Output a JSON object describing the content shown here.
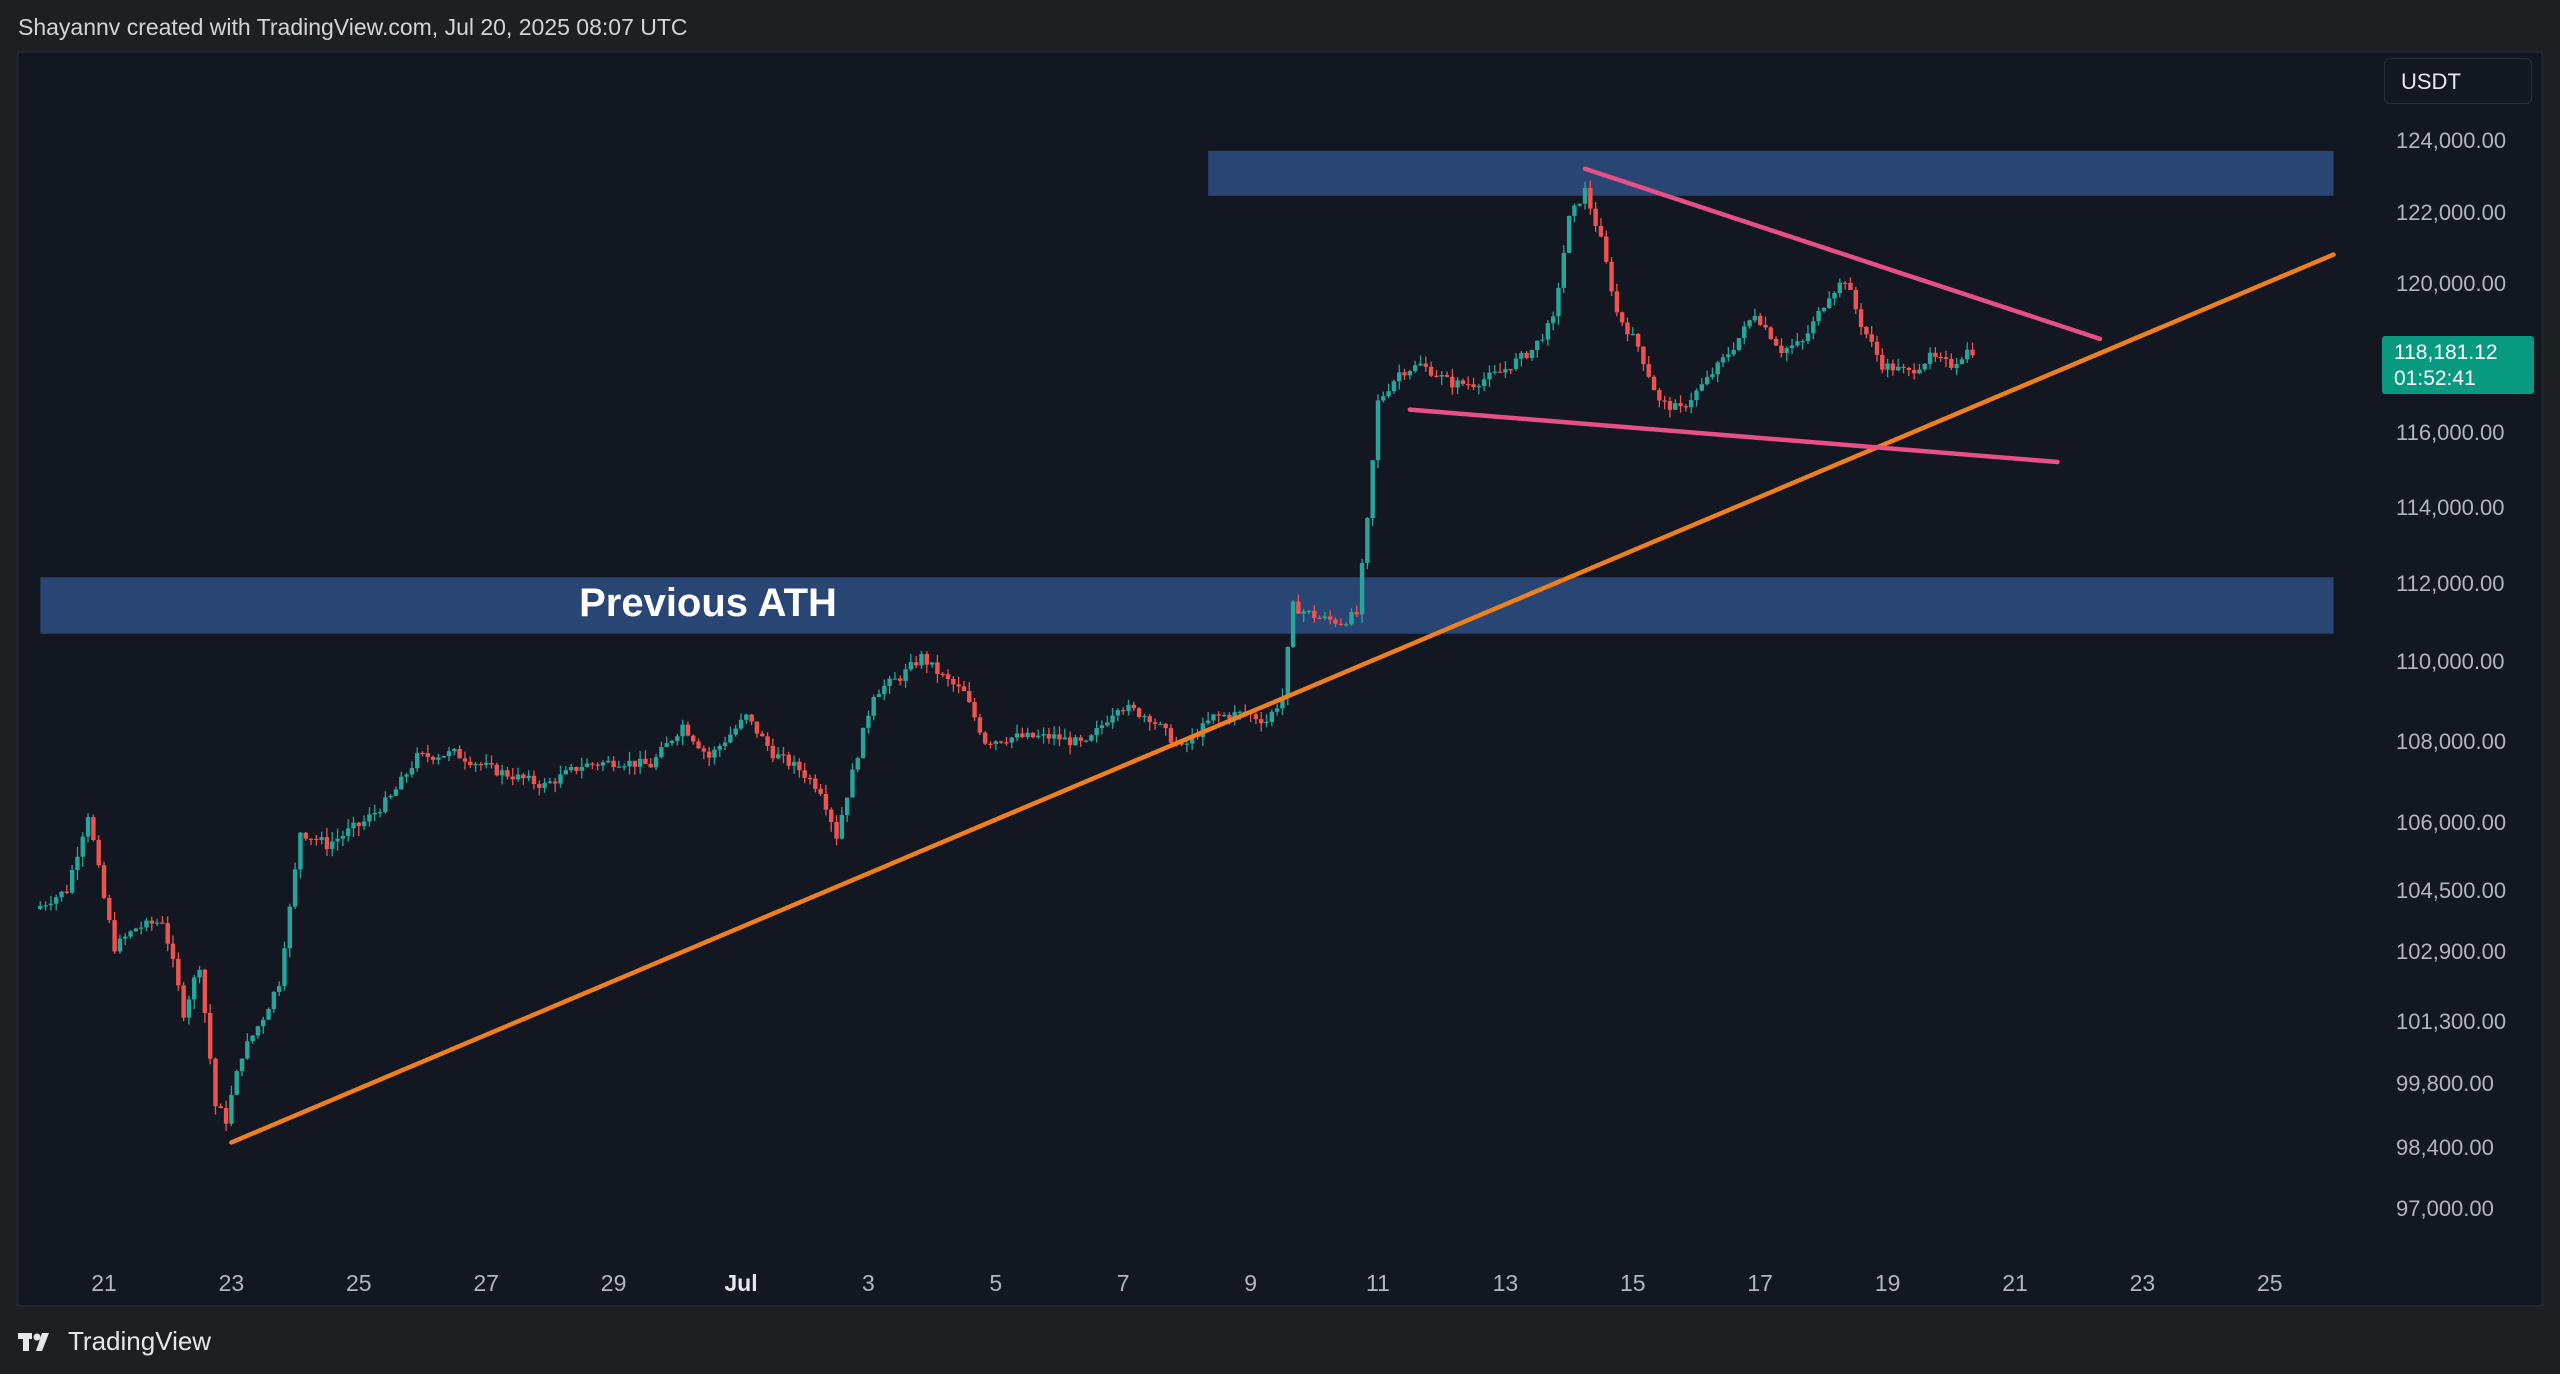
{
  "header": {
    "attribution": "Shayannv created with TradingView.com, Jul 20, 2025 08:07 UTC"
  },
  "footer": {
    "brand": "TradingView"
  },
  "price_scale": {
    "currency": "USDT"
  },
  "last_price": {
    "price": "118,181.12",
    "countdown": "01:52:41"
  },
  "colors": {
    "background": "#131722",
    "frame": "#1e1f22",
    "up": "#26a69a",
    "down": "#ef5350",
    "zone": "#2b4a7c",
    "trendline": "#f0801e",
    "wedge": "#e84f86",
    "last_price_tag": "#089981"
  },
  "chart_data": {
    "type": "candlestick",
    "symbol_quote": "USDT",
    "annotations": {
      "zone_label": "Previous ATH"
    },
    "y_ticks": [
      "124,000.00",
      "122,000.00",
      "120,000.00",
      "116,000.00",
      "114,000.00",
      "112,000.00",
      "110,000.00",
      "108,000.00",
      "106,000.00",
      "104,500.00",
      "102,900.00",
      "101,300.00",
      "99,800.00",
      "98,400.00",
      "97,000.00"
    ],
    "y_tick_values": [
      124000,
      122000,
      120000,
      116000,
      114000,
      112000,
      110000,
      108000,
      106000,
      104500,
      102900,
      101300,
      99800,
      98400,
      97000
    ],
    "x_ticks": [
      "21",
      "23",
      "25",
      "27",
      "29",
      "Jul",
      "3",
      "5",
      "7",
      "9",
      "11",
      "13",
      "15",
      "17",
      "19",
      "21",
      "23",
      "25"
    ],
    "x_tick_dates": [
      "2025-06-21",
      "2025-06-23",
      "2025-06-25",
      "2025-06-27",
      "2025-06-29",
      "2025-07-01",
      "2025-07-03",
      "2025-07-05",
      "2025-07-07",
      "2025-07-09",
      "2025-07-11",
      "2025-07-13",
      "2025-07-15",
      "2025-07-17",
      "2025-07-19",
      "2025-07-21",
      "2025-07-23",
      "2025-07-25"
    ],
    "price_path": [
      [
        "2025-06-20 00:00",
        104000
      ],
      [
        "2025-06-20 12:00",
        104500
      ],
      [
        "2025-06-20 20:00",
        106200
      ],
      [
        "2025-06-21 06:00",
        103000
      ],
      [
        "2025-06-21 14:00",
        103500
      ],
      [
        "2025-06-22 00:00",
        103700
      ],
      [
        "2025-06-22 08:00",
        101500
      ],
      [
        "2025-06-22 14:00",
        102600
      ],
      [
        "2025-06-22 20:00",
        99300
      ],
      [
        "2025-06-23 00:00",
        99000
      ],
      [
        "2025-06-23 06:00",
        100500
      ],
      [
        "2025-06-23 14:00",
        101400
      ],
      [
        "2025-06-23 20:00",
        102200
      ],
      [
        "2025-06-24 04:00",
        105800
      ],
      [
        "2025-06-24 14:00",
        105500
      ],
      [
        "2025-06-25 04:00",
        106000
      ],
      [
        "2025-06-25 14:00",
        106600
      ],
      [
        "2025-06-26 00:00",
        107600
      ],
      [
        "2025-06-26 14:00",
        107700
      ],
      [
        "2025-06-27 04:00",
        107300
      ],
      [
        "2025-06-27 14:00",
        107100
      ],
      [
        "2025-06-28 00:00",
        106900
      ],
      [
        "2025-06-28 14:00",
        107400
      ],
      [
        "2025-06-29 04:00",
        107500
      ],
      [
        "2025-06-29 16:00",
        107400
      ],
      [
        "2025-06-30 04:00",
        108400
      ],
      [
        "2025-06-30 14:00",
        107600
      ],
      [
        "2025-07-01 04:00",
        108600
      ],
      [
        "2025-07-01 14:00",
        107700
      ],
      [
        "2025-07-02 00:00",
        107300
      ],
      [
        "2025-07-02 08:00",
        106800
      ],
      [
        "2025-07-02 14:00",
        105700
      ],
      [
        "2025-07-02 20:00",
        107200
      ],
      [
        "2025-07-03 04:00",
        109200
      ],
      [
        "2025-07-03 14:00",
        109600
      ],
      [
        "2025-07-03 22:00",
        110100
      ],
      [
        "2025-07-04 06:00",
        109600
      ],
      [
        "2025-07-04 14:00",
        109200
      ],
      [
        "2025-07-04 22:00",
        108000
      ],
      [
        "2025-07-05 10:00",
        108100
      ],
      [
        "2025-07-06 00:00",
        108100
      ],
      [
        "2025-07-06 12:00",
        107900
      ],
      [
        "2025-07-07 00:00",
        108900
      ],
      [
        "2025-07-07 12:00",
        108600
      ],
      [
        "2025-07-08 00:00",
        107800
      ],
      [
        "2025-07-08 12:00",
        108600
      ],
      [
        "2025-07-09 00:00",
        108700
      ],
      [
        "2025-07-09 08:00",
        108500
      ],
      [
        "2025-07-09 14:00",
        109100
      ],
      [
        "2025-07-09 18:00",
        111400
      ],
      [
        "2025-07-10 04:00",
        111100
      ],
      [
        "2025-07-10 12:00",
        111000
      ],
      [
        "2025-07-10 18:00",
        111200
      ],
      [
        "2025-07-10 22:00",
        113600
      ],
      [
        "2025-07-11 02:00",
        116800
      ],
      [
        "2025-07-11 10:00",
        117600
      ],
      [
        "2025-07-11 18:00",
        117800
      ],
      [
        "2025-07-12 06:00",
        117300
      ],
      [
        "2025-07-12 14:00",
        117300
      ],
      [
        "2025-07-13 00:00",
        117600
      ],
      [
        "2025-07-13 12:00",
        118200
      ],
      [
        "2025-07-13 20:00",
        119000
      ],
      [
        "2025-07-14 02:00",
        121800
      ],
      [
        "2025-07-14 08:00",
        122600
      ],
      [
        "2025-07-14 14:00",
        121200
      ],
      [
        "2025-07-14 20:00",
        119200
      ],
      [
        "2025-07-15 04:00",
        118300
      ],
      [
        "2025-07-15 12:00",
        116800
      ],
      [
        "2025-07-15 20:00",
        116600
      ],
      [
        "2025-07-16 06:00",
        117400
      ],
      [
        "2025-07-16 16:00",
        118300
      ],
      [
        "2025-07-17 00:00",
        119200
      ],
      [
        "2025-07-17 10:00",
        118200
      ],
      [
        "2025-07-17 18:00",
        118400
      ],
      [
        "2025-07-18 04:00",
        119700
      ],
      [
        "2025-07-18 10:00",
        120100
      ],
      [
        "2025-07-18 16:00",
        118900
      ],
      [
        "2025-07-19 00:00",
        117800
      ],
      [
        "2025-07-19 10:00",
        117600
      ],
      [
        "2025-07-19 18:00",
        118000
      ],
      [
        "2025-07-20 02:00",
        117800
      ],
      [
        "2025-07-20 08:00",
        118181
      ]
    ],
    "zones": [
      {
        "label": "Previous ATH",
        "from_date": "2025-06-20",
        "to_date": "2025-07-26",
        "low": 110700,
        "high": 112150
      },
      {
        "label": "",
        "from_date": "2025-07-08 08:00",
        "to_date": "2025-07-26",
        "low": 122450,
        "high": 123700
      }
    ],
    "trendlines": [
      {
        "role": "ascending support",
        "points": [
          [
            "2025-06-23 00:00",
            98500
          ],
          [
            "2025-07-26 00:00",
            120800
          ]
        ]
      },
      {
        "role": "wedge upper",
        "points": [
          [
            "2025-07-14 06:00",
            123200
          ],
          [
            "2025-07-22 08:00",
            118500
          ]
        ]
      },
      {
        "role": "wedge lower",
        "points": [
          [
            "2025-07-11 12:00",
            116600
          ],
          [
            "2025-07-21 16:00",
            115200
          ]
        ]
      }
    ]
  }
}
